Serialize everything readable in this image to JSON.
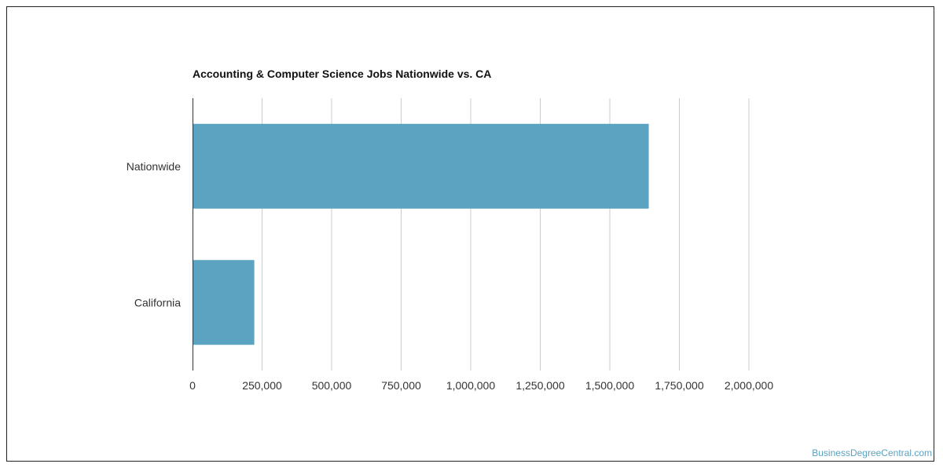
{
  "chart_data": {
    "type": "bar",
    "orientation": "horizontal",
    "title": "Accounting & Computer Science Jobs Nationwide vs. CA",
    "categories": [
      "Nationwide",
      "California"
    ],
    "values": [
      1640000,
      222000
    ],
    "xlim": [
      0,
      2000000
    ],
    "xticks": [
      0,
      250000,
      500000,
      750000,
      1000000,
      1250000,
      1500000,
      1750000,
      2000000
    ],
    "xtick_labels": [
      "0",
      "250,000",
      "500,000",
      "750,000",
      "1,000,000",
      "1,250,000",
      "1,500,000",
      "1,750,000",
      "2,000,000"
    ],
    "grid": true,
    "bar_color": "#5ba3c0",
    "grid_color": "#cccccc"
  },
  "footer": {
    "watermark": "BusinessDegreeCentral.com",
    "watermark_color": "#5aa2c0"
  }
}
